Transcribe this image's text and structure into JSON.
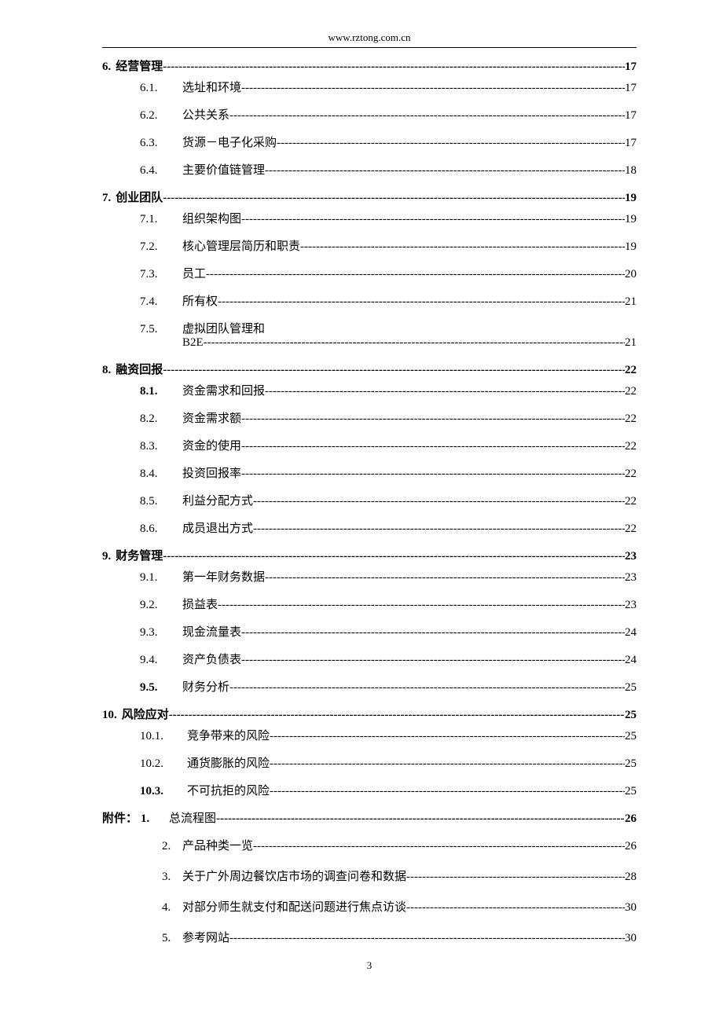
{
  "header": {
    "url": "www.rztong.com.cn"
  },
  "leader": "----------------------------------------------------------------------------------------------------------------------------------------------------------------",
  "toc": {
    "sections": [
      {
        "num": "6.",
        "title": "经营管理",
        "page": "17",
        "items": [
          {
            "num": "6.1.",
            "title": "选址和环境",
            "page": "17",
            "bold": false
          },
          {
            "num": "6.2.",
            "title": "公共关系",
            "page": "17",
            "bold": false
          },
          {
            "num": "6.3.",
            "title": "货源－电子化采购",
            "page": "17",
            "bold": false
          },
          {
            "num": "6.4.",
            "title": "主要价值链管理",
            "page": "18",
            "bold": false
          }
        ]
      },
      {
        "num": "7.",
        "title": "创业团队",
        "page": "19",
        "items": [
          {
            "num": "7.1.",
            "title": "组织架构图",
            "page": "19",
            "bold": false
          },
          {
            "num": "7.2.",
            "title": "核心管理层简历和职责",
            "page": "19",
            "bold": false
          },
          {
            "num": "7.3.",
            "title": "员工",
            "page": "20",
            "bold": false
          },
          {
            "num": "7.4.",
            "title": "所有权",
            "page": "21",
            "bold": false
          },
          {
            "num": "7.5.",
            "title": "虚拟团队管理和",
            "title2": "B2E",
            "page": "21",
            "bold": false,
            "multiline": true
          }
        ]
      },
      {
        "num": "8.",
        "title": "融资回报",
        "page": "22",
        "items": [
          {
            "num": "8.1.",
            "title": "资金需求和回报",
            "page": "22",
            "bold": true
          },
          {
            "num": "8.2.",
            "title": "资金需求额",
            "page": "22",
            "bold": false
          },
          {
            "num": "8.3.",
            "title": "资金的使用",
            "page": "22",
            "bold": false
          },
          {
            "num": "8.4.",
            "title": "投资回报率",
            "page": "22",
            "bold": false
          },
          {
            "num": "8.5.",
            "title": "利益分配方式",
            "page": "22",
            "bold": false
          },
          {
            "num": "8.6.",
            "title": "成员退出方式",
            "page": "22",
            "bold": false
          }
        ]
      },
      {
        "num": "9.",
        "title": "财务管理",
        "page": "23",
        "items": [
          {
            "num": "9.1.",
            "title": "第一年财务数据",
            "page": "23",
            "bold": false
          },
          {
            "num": "9.2.",
            "title": "损益表",
            "page": "23",
            "bold": false
          },
          {
            "num": "9.3.",
            "title": "现金流量表",
            "page": "24",
            "bold": false
          },
          {
            "num": "9.4.",
            "title": "资产负债表",
            "page": "24",
            "bold": false
          },
          {
            "num": "9.5.",
            "title": "财务分析",
            "page": "25",
            "bold": true
          }
        ]
      },
      {
        "num": "10.",
        "title": "风险应对",
        "page": "25",
        "items": [
          {
            "num": "10.1.",
            "title": "竞争带来的风险",
            "page": "25",
            "bold": false,
            "wide": true
          },
          {
            "num": "10.2.",
            "title": "通货膨胀的风险",
            "page": "25",
            "bold": false,
            "wide": true
          },
          {
            "num": "10.3.",
            "title": "不可抗拒的风险",
            "page": "25",
            "bold": true,
            "wide": true
          }
        ]
      }
    ],
    "appendix": {
      "label": "附件：",
      "first": {
        "num": "1.",
        "title": "总流程图",
        "page": "26",
        "bold": true
      },
      "items": [
        {
          "num": "2.",
          "title": "产品种类一览",
          "page": "26"
        },
        {
          "num": "3.",
          "title": "关于广外周边餐饮店市场的调查问卷和数据",
          "page": "28"
        },
        {
          "num": "4.",
          "title": "对部分师生就支付和配送问题进行焦点访谈",
          "page": "30"
        },
        {
          "num": "5.",
          "title": "参考网站",
          "page": "30"
        }
      ]
    }
  },
  "pageNumber": "3"
}
